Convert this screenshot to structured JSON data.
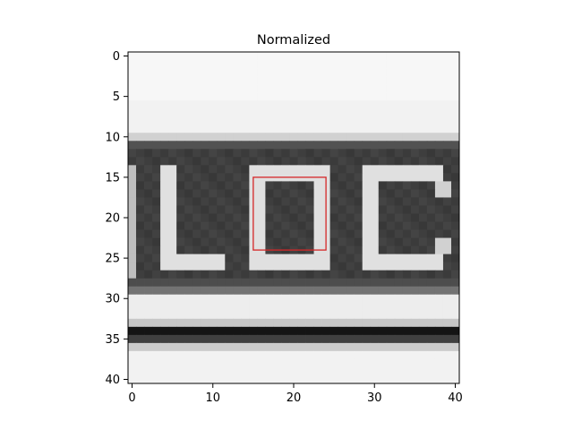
{
  "chart_data": {
    "type": "heatmap",
    "title": "Normalized",
    "xlabel": "",
    "ylabel": "",
    "colormap": "gray",
    "grid": false,
    "legend": "none",
    "grid_size": [
      41,
      41
    ],
    "xlim": [
      -0.5,
      40.5
    ],
    "ylim": [
      40.5,
      -0.5
    ],
    "x_ticks": [
      0,
      10,
      20,
      30,
      40
    ],
    "y_ticks": [
      0,
      5,
      10,
      15,
      20,
      25,
      30,
      35,
      40
    ],
    "x_tick_labels": [
      "0",
      "10",
      "20",
      "30",
      "40"
    ],
    "y_tick_labels": [
      "0",
      "5",
      "10",
      "15",
      "20",
      "25",
      "30",
      "35",
      "40"
    ],
    "image_content": {
      "letters": [
        "L",
        "O",
        "C"
      ],
      "top_light_band_rows": [
        0,
        9
      ],
      "dark_band_rows": [
        11,
        29
      ],
      "light_stripe_rows": [
        30,
        33
      ],
      "black_line_rows": [
        34,
        35
      ],
      "bottom_light_rows": [
        36,
        40
      ]
    },
    "annotation": {
      "type": "rectangle",
      "color": "#d62728",
      "x0": 15,
      "x1": 24,
      "y0": 15,
      "y1": 24
    }
  }
}
